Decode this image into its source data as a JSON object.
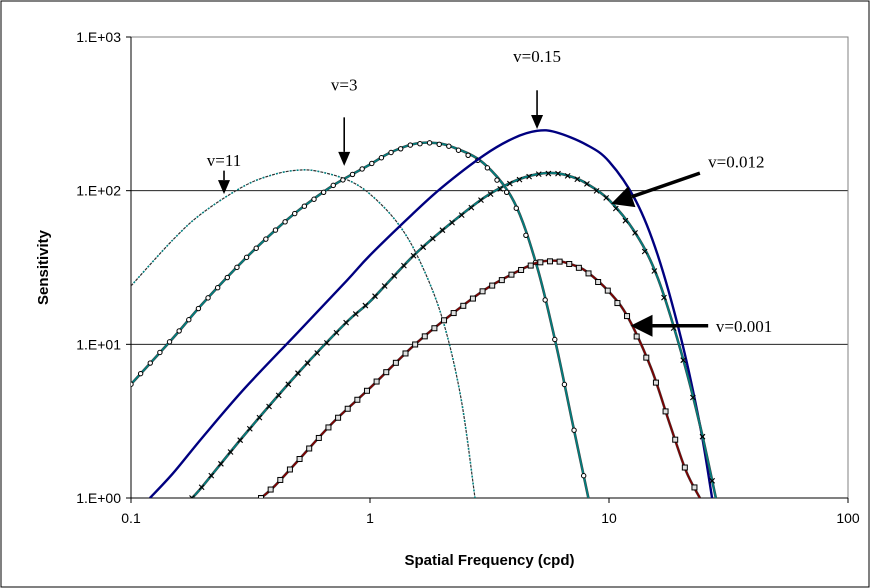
{
  "chart_data": {
    "type": "line",
    "title": "",
    "xlabel": "Spatial Frequency (cpd)",
    "ylabel": "Sensitivity",
    "x_scale": "log",
    "y_scale": "log",
    "xlim": [
      0.1,
      100
    ],
    "ylim": [
      1,
      1000
    ],
    "x_ticks": [
      0.1,
      1,
      10,
      100
    ],
    "x_tick_labels": [
      "0.1",
      "1",
      "10",
      "100"
    ],
    "y_ticks": [
      1,
      10,
      100,
      1000
    ],
    "y_tick_labels": [
      "1.E+00",
      "1.E+01",
      "1.E+02",
      "1.E+03"
    ],
    "grid": "horizontal major",
    "legend": "none",
    "series": [
      {
        "name": "v=11",
        "color": "#008080",
        "style": "dashed",
        "marker": "none",
        "points": [
          [
            0.1,
            24
          ],
          [
            0.15,
            48
          ],
          [
            0.2,
            72
          ],
          [
            0.3,
            108
          ],
          [
            0.4,
            128
          ],
          [
            0.5,
            136
          ],
          [
            0.6,
            134
          ],
          [
            0.8,
            118
          ],
          [
            1.0,
            95
          ],
          [
            1.3,
            62
          ],
          [
            1.6,
            36
          ],
          [
            2.0,
            15
          ],
          [
            2.4,
            4.5
          ],
          [
            2.75,
            1.0
          ]
        ]
      },
      {
        "name": "v=3",
        "color": "#008080",
        "style": "solid",
        "marker": "circle",
        "points": [
          [
            0.1,
            5.5
          ],
          [
            0.15,
            11
          ],
          [
            0.2,
            18.5
          ],
          [
            0.3,
            36
          ],
          [
            0.4,
            55
          ],
          [
            0.5,
            74
          ],
          [
            0.7,
            108
          ],
          [
            1.0,
            148
          ],
          [
            1.2,
            175
          ],
          [
            1.5,
            200
          ],
          [
            1.8,
            205
          ],
          [
            2.2,
            193
          ],
          [
            3.0,
            150
          ],
          [
            4.0,
            85
          ],
          [
            5.0,
            32
          ],
          [
            6.0,
            10
          ],
          [
            7.0,
            3.2
          ],
          [
            8.2,
            1.0
          ]
        ]
      },
      {
        "name": "v=0.15",
        "color": "#000080",
        "style": "solid",
        "marker": "none",
        "points": [
          [
            0.12,
            1.0
          ],
          [
            0.15,
            1.45
          ],
          [
            0.2,
            2.5
          ],
          [
            0.3,
            5.2
          ],
          [
            0.5,
            12
          ],
          [
            0.8,
            26
          ],
          [
            1.0,
            38
          ],
          [
            1.5,
            70
          ],
          [
            2.0,
            105
          ],
          [
            3.0,
            170
          ],
          [
            4.0,
            220
          ],
          [
            5.0,
            245
          ],
          [
            6.0,
            240
          ],
          [
            8.0,
            200
          ],
          [
            10.0,
            155
          ],
          [
            13.0,
            85
          ],
          [
            16.0,
            38
          ],
          [
            20.0,
            11
          ],
          [
            24.0,
            3.0
          ],
          [
            27.0,
            1.0
          ]
        ]
      },
      {
        "name": "v=0.012",
        "color": "#008080",
        "style": "solid",
        "marker": "x",
        "points": [
          [
            0.18,
            1.0
          ],
          [
            0.2,
            1.2
          ],
          [
            0.3,
            2.6
          ],
          [
            0.5,
            6.5
          ],
          [
            0.8,
            14
          ],
          [
            1.0,
            19
          ],
          [
            1.5,
            37
          ],
          [
            2.0,
            55
          ],
          [
            3.0,
            90
          ],
          [
            4.0,
            115
          ],
          [
            5.0,
            128
          ],
          [
            6.0,
            130
          ],
          [
            7.0,
            123
          ],
          [
            8.0,
            112
          ],
          [
            10.0,
            87
          ],
          [
            13.0,
            52
          ],
          [
            16.0,
            27
          ],
          [
            20.0,
            9
          ],
          [
            24.0,
            3.0
          ],
          [
            28.0,
            1.0
          ]
        ]
      },
      {
        "name": "v=0.001",
        "color": "#800000",
        "style": "solid",
        "marker": "square",
        "points": [
          [
            0.35,
            1.0
          ],
          [
            0.4,
            1.2
          ],
          [
            0.5,
            1.75
          ],
          [
            0.7,
            3.1
          ],
          [
            1.0,
            5.2
          ],
          [
            1.5,
            9.6
          ],
          [
            2.0,
            14
          ],
          [
            3.0,
            22.5
          ],
          [
            4.0,
            29
          ],
          [
            5.0,
            34
          ],
          [
            6.0,
            35
          ],
          [
            7.0,
            33
          ],
          [
            8.0,
            30
          ],
          [
            10.0,
            22
          ],
          [
            12.0,
            15
          ],
          [
            15.0,
            7
          ],
          [
            18.0,
            3
          ],
          [
            21.0,
            1.5
          ],
          [
            24.0,
            1.0
          ]
        ]
      }
    ],
    "annotations": [
      {
        "text": "v=11",
        "label_x": 0.245,
        "label_y": 145,
        "arrow_from": [
          0.245,
          135
        ],
        "arrow_to": [
          0.245,
          95
        ],
        "direction": "down"
      },
      {
        "text": "v=3",
        "label_x": 0.78,
        "label_y": 450,
        "arrow_from": [
          0.78,
          300
        ],
        "arrow_to": [
          0.78,
          145
        ],
        "direction": "down"
      },
      {
        "text": "v=0.15",
        "label_x": 5.0,
        "label_y": 690,
        "arrow_from": [
          5.0,
          450
        ],
        "arrow_to": [
          5.0,
          252
        ],
        "direction": "down"
      },
      {
        "text": "v=0.012",
        "label_x": 26,
        "label_y": 155,
        "arrow_from": [
          24,
          130
        ],
        "arrow_to": [
          10.2,
          82
        ],
        "direction": "left-down"
      },
      {
        "text": "v=0.001",
        "label_x": 28,
        "label_y": 13.2,
        "arrow_from": [
          26,
          13.2
        ],
        "arrow_to": [
          12.3,
          13.2
        ],
        "direction": "left"
      }
    ]
  }
}
